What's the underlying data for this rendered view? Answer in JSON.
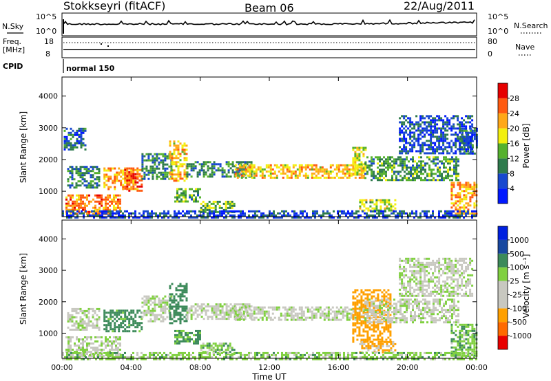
{
  "header": {
    "station": "Stokkseyri (fitACF)",
    "beam": "Beam 06",
    "date": "22/Aug/2011"
  },
  "status": {
    "nsky_label": "N.Sky",
    "nsearch_label": "N.Search",
    "noise_ticks": [
      "10^5",
      "10^0"
    ],
    "freq_label": "Freq.",
    "freq_unit": "[MHz]",
    "freq_ticks": [
      "18",
      "8"
    ],
    "nave_label": "Nave",
    "nave_ticks": [
      "80",
      "0"
    ],
    "cpid_label": "CPID",
    "cpid_value": "normal 150"
  },
  "colors": {
    "power": [
      "#0018ff",
      "#1848cf",
      "#2e7a4c",
      "#55b12e",
      "#f3ef0e",
      "#ffa818",
      "#ff5a10",
      "#e60000"
    ],
    "velocity": [
      "#e80000",
      "#ff6a00",
      "#ffa000",
      "#c8c8c0",
      "#c8c8c0",
      "#80d040",
      "#3c8a5a",
      "#1848a0",
      "#0020e0"
    ],
    "sparse_gray": "#b8b8b8"
  },
  "chart_data": [
    {
      "type": "heatmap",
      "panel": "power",
      "xlabel": "Time UT",
      "ylabel": "Slant Range [km]",
      "xlim": [
        0,
        24
      ],
      "ylim": [
        200,
        4600
      ],
      "x_ticks": [
        "00:00",
        "04:00",
        "08:00",
        "12:00",
        "16:00",
        "20:00",
        "00:00"
      ],
      "y_ticks": [
        "1000",
        "2000",
        "3000",
        "4000"
      ],
      "colorbar_label": "Power [dB]",
      "colorbar_ticks": [
        "28",
        "24",
        "20",
        "16",
        "12",
        "8",
        "4"
      ],
      "colorbar_range": [
        0,
        32
      ],
      "echo_regions": [
        {
          "t0": 0.2,
          "t1": 3.4,
          "r0": 300,
          "r1": 900,
          "value": 24
        },
        {
          "t0": 0.3,
          "t1": 2.2,
          "r0": 1100,
          "r1": 1800,
          "value": 10
        },
        {
          "t0": 0.1,
          "t1": 1.3,
          "r0": 2300,
          "r1": 3000,
          "value": 8
        },
        {
          "t0": 2.4,
          "t1": 4.4,
          "r0": 1050,
          "r1": 1750,
          "value": 22
        },
        {
          "t0": 3.6,
          "t1": 4.6,
          "r0": 1000,
          "r1": 1700,
          "value": 26
        },
        {
          "t0": 4.6,
          "t1": 6.3,
          "r0": 1400,
          "r1": 2200,
          "value": 10
        },
        {
          "t0": 6.2,
          "t1": 7.2,
          "r0": 1300,
          "r1": 2600,
          "value": 20
        },
        {
          "t0": 6.5,
          "t1": 8.0,
          "r0": 700,
          "r1": 1100,
          "value": 12
        },
        {
          "t0": 7.2,
          "t1": 11.0,
          "r0": 1450,
          "r1": 1950,
          "value": 10
        },
        {
          "t0": 8.0,
          "t1": 10.0,
          "r0": 350,
          "r1": 700,
          "value": 14
        },
        {
          "t0": 10.0,
          "t1": 17.5,
          "r0": 1400,
          "r1": 1850,
          "value": 20
        },
        {
          "t0": 16.8,
          "t1": 17.6,
          "r0": 1500,
          "r1": 2400,
          "value": 18
        },
        {
          "t0": 17.5,
          "t1": 23.0,
          "r0": 1350,
          "r1": 2100,
          "value": 12
        },
        {
          "t0": 17.2,
          "t1": 19.3,
          "r0": 400,
          "r1": 750,
          "value": 16
        },
        {
          "t0": 19.5,
          "t1": 23.8,
          "r0": 2200,
          "r1": 3400,
          "value": 6
        },
        {
          "t0": 22.5,
          "t1": 24.0,
          "r0": 300,
          "r1": 1300,
          "value": 22
        },
        {
          "t0": 23.0,
          "t1": 24.0,
          "r0": 2200,
          "r1": 3000,
          "value": 8
        },
        {
          "t0": 0.0,
          "t1": 24.0,
          "r0": 200,
          "r1": 400,
          "value": 6
        }
      ]
    },
    {
      "type": "heatmap",
      "panel": "velocity",
      "xlabel": "Time UT",
      "ylabel": "Slant Range [km]",
      "xlim": [
        0,
        24
      ],
      "ylim": [
        200,
        4600
      ],
      "x_ticks": [
        "00:00",
        "04:00",
        "08:00",
        "12:00",
        "16:00",
        "20:00",
        "00:00"
      ],
      "y_ticks": [
        "1000",
        "2000",
        "3000",
        "4000"
      ],
      "colorbar_label": "Velocity [m s⁻¹]",
      "colorbar_ticks": [
        "1000",
        "500",
        "100",
        "25",
        "-25",
        "-100",
        "-500",
        "-1000"
      ],
      "colorbar_levels": [
        -1000,
        -500,
        -100,
        -25,
        25,
        100,
        500,
        1000
      ],
      "echo_regions": [
        {
          "t0": 0.2,
          "t1": 3.4,
          "r0": 300,
          "r1": 900,
          "value": 0
        },
        {
          "t0": 0.3,
          "t1": 2.2,
          "r0": 1100,
          "r1": 1800,
          "value": 0
        },
        {
          "t0": 2.4,
          "t1": 4.6,
          "r0": 1050,
          "r1": 1750,
          "value": 150
        },
        {
          "t0": 4.6,
          "t1": 6.3,
          "r0": 1400,
          "r1": 2200,
          "value": 0
        },
        {
          "t0": 6.2,
          "t1": 7.2,
          "r0": 1300,
          "r1": 2600,
          "value": 300
        },
        {
          "t0": 6.5,
          "t1": 8.0,
          "r0": 700,
          "r1": 1100,
          "value": 120
        },
        {
          "t0": 7.2,
          "t1": 11.0,
          "r0": 1450,
          "r1": 1950,
          "value": 0
        },
        {
          "t0": 8.0,
          "t1": 10.0,
          "r0": 350,
          "r1": 700,
          "value": 60
        },
        {
          "t0": 10.0,
          "t1": 17.5,
          "r0": 1400,
          "r1": 1850,
          "value": 0
        },
        {
          "t0": 16.8,
          "t1": 19.0,
          "r0": 700,
          "r1": 2400,
          "value": -300
        },
        {
          "t0": 17.5,
          "t1": 23.0,
          "r0": 1350,
          "r1": 2100,
          "value": 0
        },
        {
          "t0": 17.2,
          "t1": 19.3,
          "r0": 400,
          "r1": 750,
          "value": -120
        },
        {
          "t0": 19.5,
          "t1": 23.8,
          "r0": 2200,
          "r1": 3400,
          "value": 0
        },
        {
          "t0": 22.5,
          "t1": 24.0,
          "r0": 300,
          "r1": 1300,
          "value": 80
        },
        {
          "t0": 0.0,
          "t1": 24.0,
          "r0": 200,
          "r1": 400,
          "value": 60
        }
      ]
    }
  ]
}
